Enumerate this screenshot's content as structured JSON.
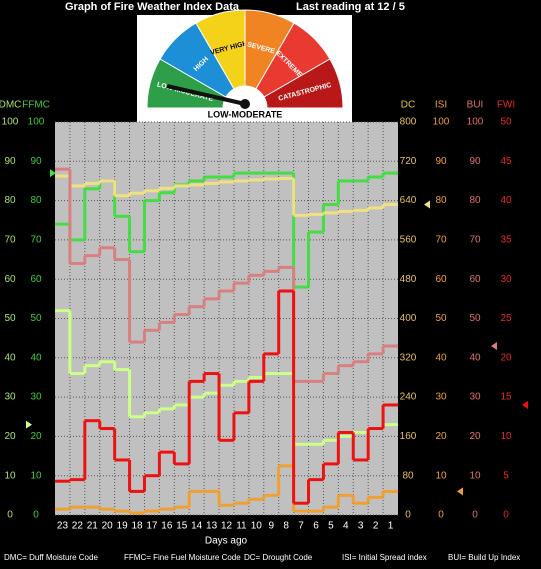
{
  "chart_data": {
    "type": "step",
    "title": "Graph of Fire Weather Index Data",
    "subtitle": "Last reading at   12 / 5",
    "gauge": {
      "segments": [
        {
          "label": "LOW-MODERATE",
          "color": "#2e9e48"
        },
        {
          "label": "HIGH",
          "color": "#1c8fd6"
        },
        {
          "label": "VERY HIGH",
          "color": "#f4d21a"
        },
        {
          "label": "SEVERE",
          "color": "#f08422"
        },
        {
          "label": "EXTREME",
          "color": "#e83a30"
        },
        {
          "label": "CATASTROPHIC",
          "color": "#b81818"
        }
      ],
      "reading": "LOW-MODERATE"
    },
    "xlabel": "Days ago",
    "categories": [
      "23",
      "22",
      "21",
      "20",
      "19",
      "18",
      "17",
      "16",
      "15",
      "14",
      "13",
      "12",
      "11",
      "10",
      "9",
      "8",
      "7",
      "6",
      "5",
      "4",
      "3",
      "2",
      "1"
    ],
    "grid": true,
    "axes": [
      {
        "name": "DMC",
        "side": "left",
        "color": "#a8e070",
        "line_color": "#ccff88",
        "ylim": [
          0,
          100
        ],
        "yticks": [
          0,
          10,
          20,
          30,
          40,
          50,
          60,
          70,
          80,
          90,
          100
        ],
        "values": [
          52,
          36,
          38,
          39,
          37,
          25,
          26,
          27,
          28,
          30,
          31,
          33,
          34,
          35,
          36,
          36,
          18,
          18,
          19,
          20,
          21,
          22,
          23
        ]
      },
      {
        "name": "FFMC",
        "side": "left",
        "color": "#3ccc3c",
        "line_color": "#44dd44",
        "ylim": [
          0,
          100
        ],
        "yticks": [
          0,
          10,
          20,
          30,
          40,
          50,
          60,
          70,
          80,
          90,
          100
        ],
        "values": [
          74,
          70,
          83,
          85,
          76,
          67,
          80,
          82,
          84,
          85,
          86,
          86,
          87,
          87,
          87,
          87,
          58,
          72,
          79,
          85,
          85,
          86,
          87
        ]
      },
      {
        "name": "DC",
        "side": "right",
        "color": "#e8c060",
        "line_color": "#f0e080",
        "ylim": [
          0,
          800
        ],
        "yticks": [
          0,
          80,
          160,
          240,
          320,
          400,
          480,
          560,
          640,
          720,
          800
        ],
        "values": [
          690,
          670,
          675,
          680,
          650,
          655,
          660,
          665,
          670,
          672,
          675,
          678,
          680,
          682,
          684,
          685,
          610,
          612,
          615,
          618,
          620,
          625,
          632
        ]
      },
      {
        "name": "ISI",
        "side": "right",
        "color": "#f0a040",
        "line_color": "#f0a030",
        "ylim": [
          0,
          100
        ],
        "yticks": [
          0,
          10,
          20,
          30,
          40,
          50,
          60,
          70,
          80,
          90,
          100
        ],
        "values": [
          1.5,
          2,
          2,
          1.5,
          1,
          0.5,
          1,
          1.5,
          2,
          6,
          6,
          2.5,
          3,
          4,
          5,
          12.5,
          1,
          1,
          2,
          5,
          3,
          4.5,
          6
        ]
      },
      {
        "name": "BUI",
        "side": "right",
        "color": "#e07070",
        "line_color": "#d88080",
        "ylim": [
          0,
          100
        ],
        "yticks": [
          0,
          10,
          20,
          30,
          40,
          50,
          60,
          70,
          80,
          90,
          100
        ],
        "values": [
          88,
          64,
          66,
          68,
          65,
          44,
          47,
          49,
          51,
          53,
          55,
          57,
          59,
          61,
          62,
          63,
          34,
          34,
          36,
          38,
          39,
          41,
          43
        ]
      },
      {
        "name": "FWI",
        "side": "right",
        "color": "#e82828",
        "line_color": "#ee1111",
        "ylim": [
          0,
          50
        ],
        "yticks": [
          0,
          5,
          10,
          15,
          20,
          25,
          30,
          35,
          40,
          45,
          50
        ],
        "values": [
          4.3,
          4.5,
          12,
          11,
          7,
          3,
          5,
          8,
          6.5,
          17,
          18,
          9.5,
          13,
          17,
          20.5,
          28.5,
          1.5,
          4.5,
          6.5,
          10.5,
          7,
          11,
          14
        ]
      }
    ],
    "footnotes": [
      "DMC= Duff Moisture Code",
      "FFMC= Fine Fuel Moisture Code",
      "DC= Drought Code",
      "ISI= Initial Spread index",
      "BUI= Build Up Index"
    ]
  }
}
